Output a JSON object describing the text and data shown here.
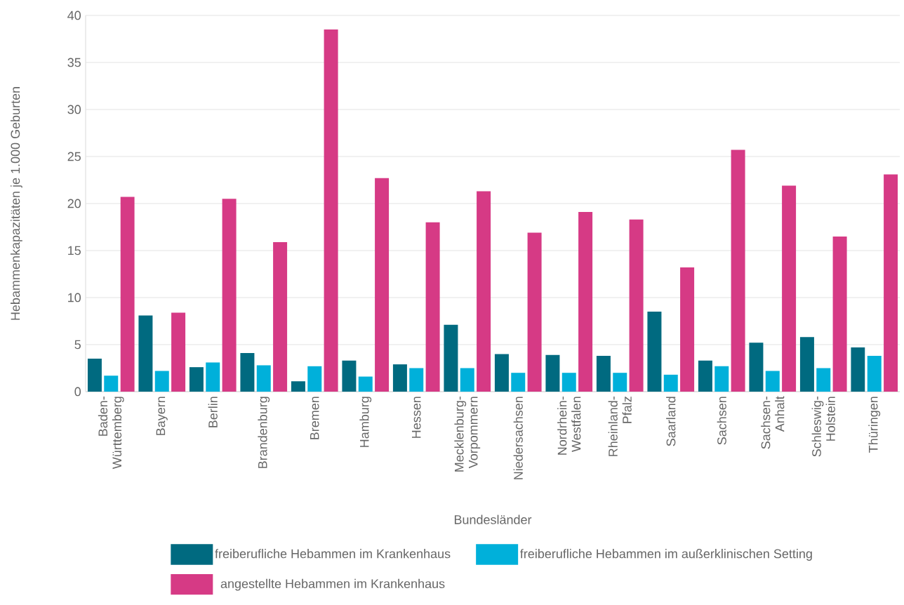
{
  "chart_data": {
    "type": "bar",
    "xlabel": "Bundesländer",
    "ylabel": "Hebammenkapazitäten je 1.000 Geburten",
    "categories": [
      "Baden-Württemberg",
      "Bayern",
      "Berlin",
      "Brandenburg",
      "Bremen",
      "Hamburg",
      "Hessen",
      "Mecklenburg-Vorpommern",
      "Niedersachsen",
      "Nordrhein-Westfalen",
      "Rheinland-Pfalz",
      "Saarland",
      "Sachsen",
      "Sachsen-Anhalt",
      "Schleswig-Holstein",
      "Thüringen"
    ],
    "series": [
      {
        "name": "freiberufliche Hebammen im Krankenhaus",
        "color": "#006a80",
        "values": [
          3.5,
          8.1,
          2.6,
          4.1,
          1.1,
          3.3,
          2.9,
          7.1,
          4.0,
          3.9,
          3.8,
          8.5,
          3.3,
          5.2,
          5.8,
          4.7
        ]
      },
      {
        "name": "freiberufliche Hebammen im außerklinischen Setting",
        "color": "#00b0da",
        "values": [
          1.7,
          2.2,
          3.1,
          2.8,
          2.7,
          1.6,
          2.5,
          2.5,
          2.0,
          2.0,
          2.0,
          1.8,
          2.7,
          2.2,
          2.5,
          3.8
        ]
      },
      {
        "name": "angestellte Hebammen im Krankenhaus",
        "color": "#d63a85",
        "values": [
          20.7,
          8.4,
          20.5,
          15.9,
          38.5,
          22.7,
          18.0,
          21.3,
          16.9,
          19.1,
          18.3,
          13.2,
          25.7,
          21.9,
          16.5,
          23.1
        ]
      }
    ],
    "ylim": [
      0,
      40
    ],
    "yticks": [
      0,
      5,
      10,
      15,
      20,
      25,
      30,
      35,
      40
    ],
    "grid": "y",
    "legend": "bottom"
  }
}
